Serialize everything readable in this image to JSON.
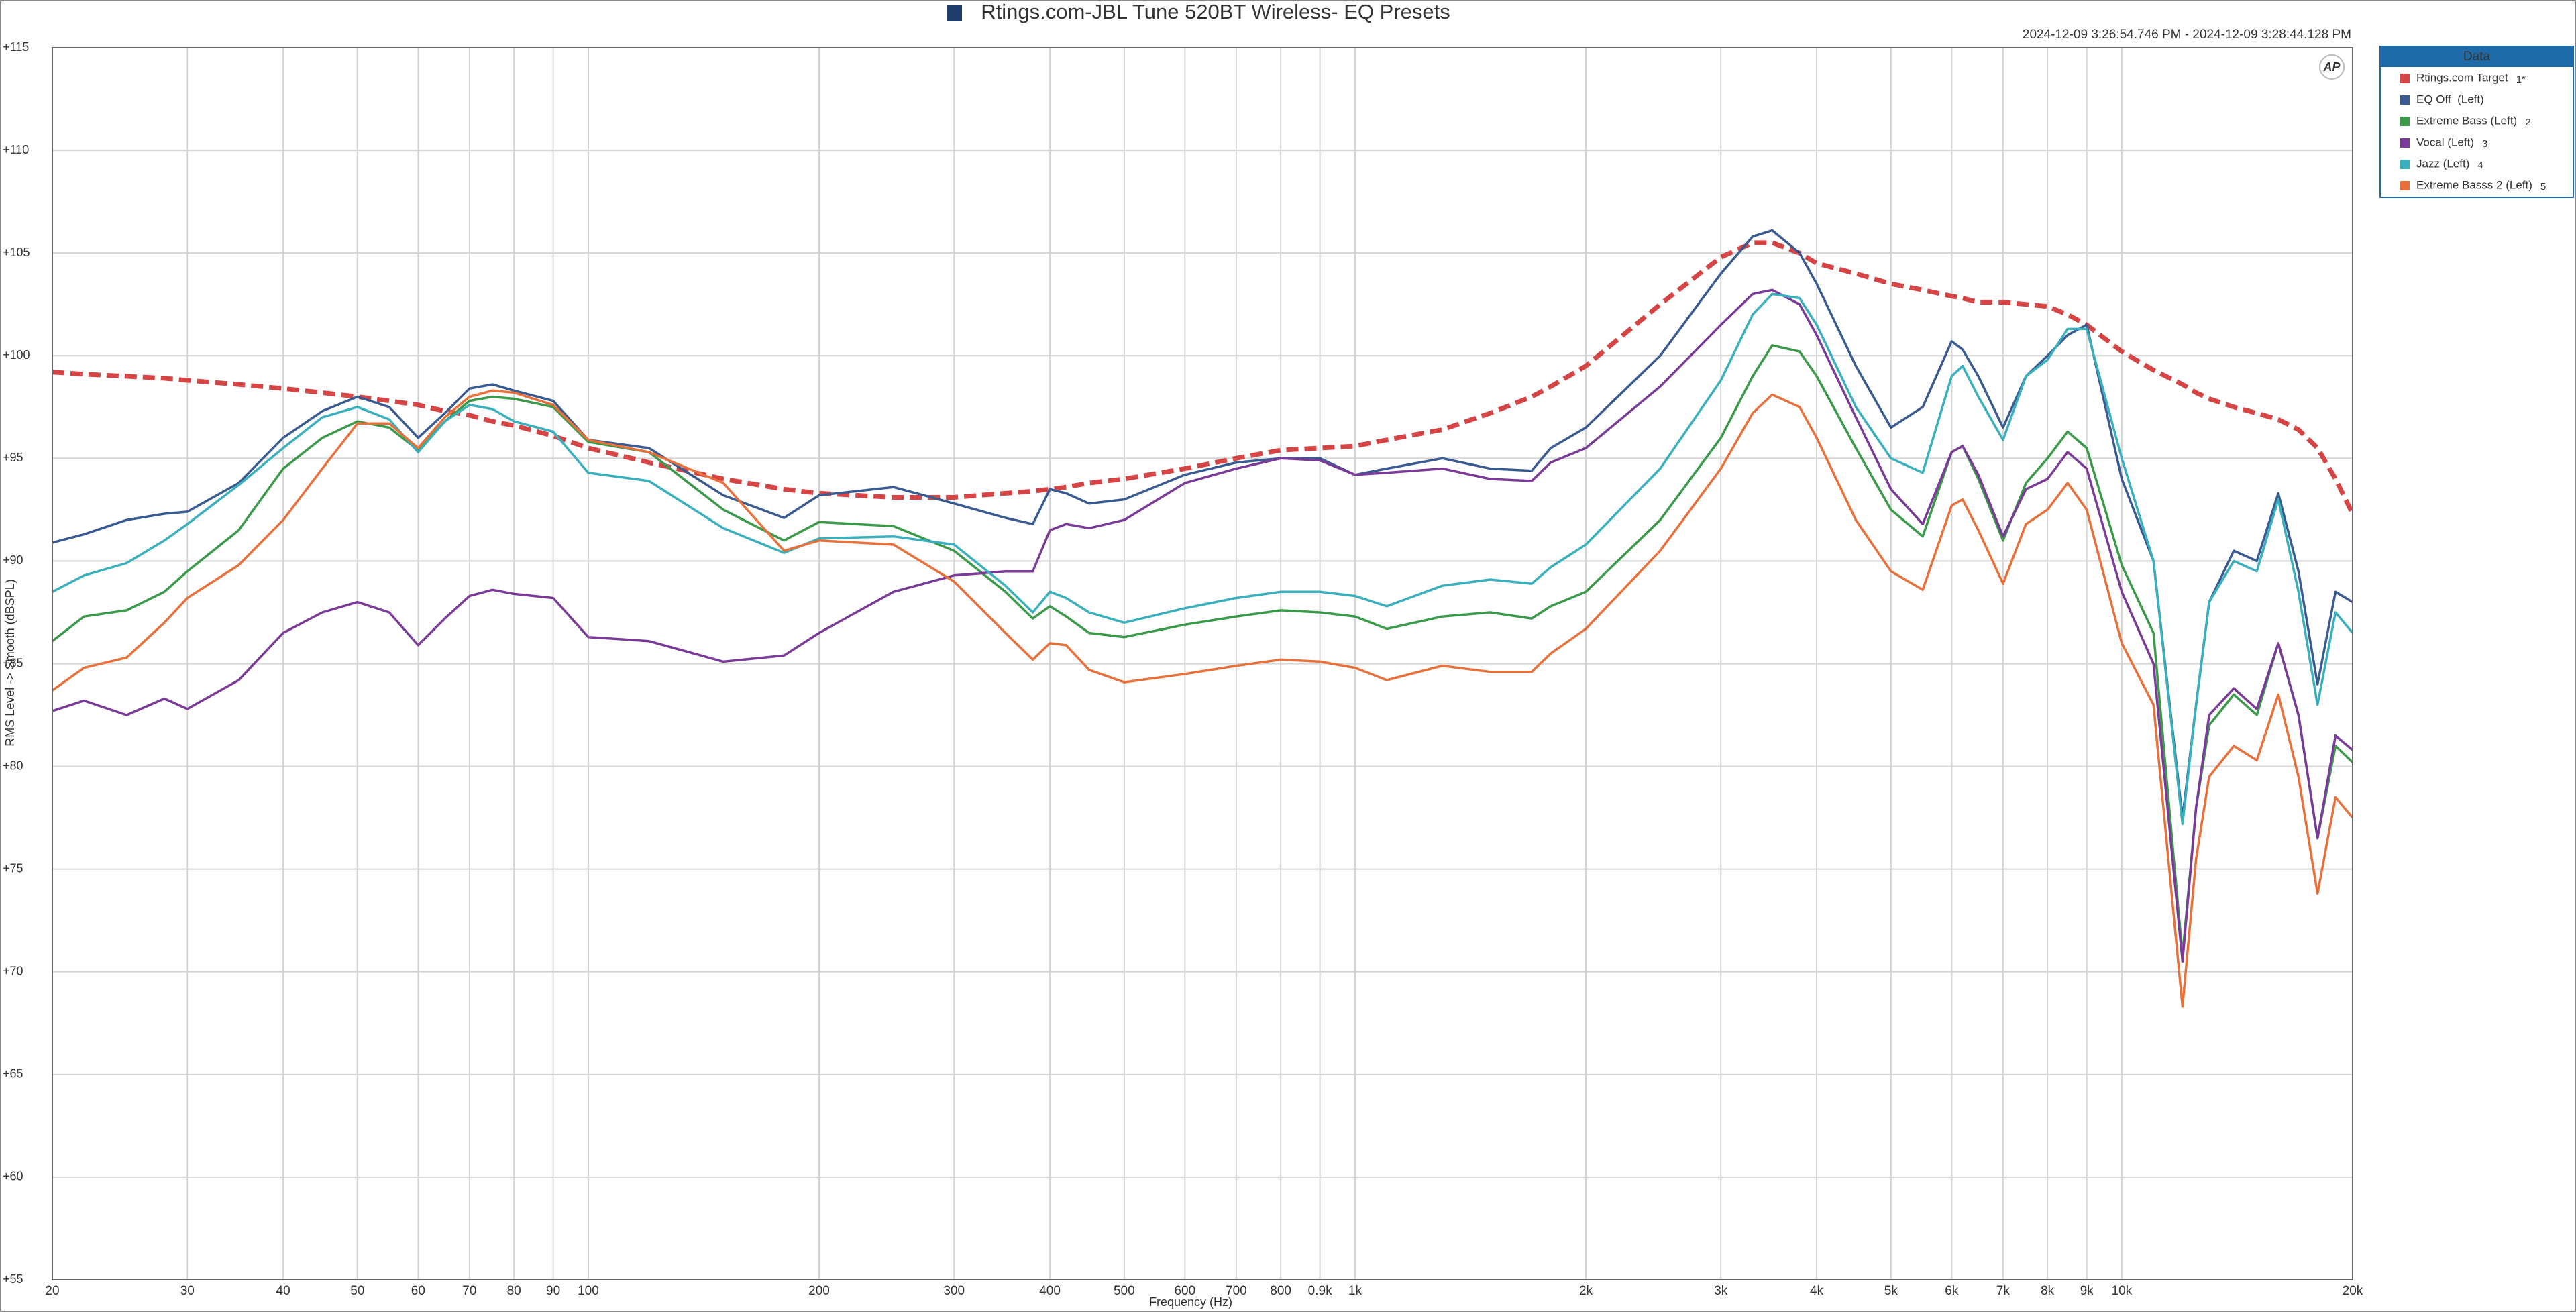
{
  "chart_data": {
    "type": "line",
    "title": "Rtings.com-JBL Tune 520BT Wireless- EQ Presets",
    "subtitle": "2024-12-09 3:26:54.746 PM - 2024-12-09 3:28:44.128 PM",
    "x_label": "Frequency (Hz)",
    "y_label": "RMS Level -> Smooth (dBSPL)",
    "logo": "AP",
    "legend_title": "Data",
    "legend_position": "right",
    "xscale": "log",
    "grid": true,
    "xlim": [
      20,
      20000
    ],
    "ylim": [
      55,
      115
    ],
    "xticks": [
      20,
      30,
      40,
      50,
      60,
      70,
      80,
      90,
      100,
      200,
      300,
      400,
      500,
      600,
      700,
      800,
      {
        "value": 900,
        "label": "0.9k"
      },
      {
        "value": 1000,
        "label": "1k"
      },
      {
        "value": 2000,
        "label": "2k"
      },
      {
        "value": 3000,
        "label": "3k"
      },
      {
        "value": 4000,
        "label": "4k"
      },
      {
        "value": 5000,
        "label": "5k"
      },
      {
        "value": 6000,
        "label": "6k"
      },
      {
        "value": 7000,
        "label": "7k"
      },
      {
        "value": 8000,
        "label": "8k"
      },
      {
        "value": 9000,
        "label": "9k"
      },
      {
        "value": 10000,
        "label": "10k"
      },
      {
        "value": 20000,
        "label": "20k"
      }
    ],
    "yticks": [
      {
        "value": 55,
        "label": "+55"
      },
      {
        "value": 60,
        "label": "+60"
      },
      {
        "value": 65,
        "label": "+65"
      },
      {
        "value": 70,
        "label": "+70"
      },
      {
        "value": 75,
        "label": "+75"
      },
      {
        "value": 80,
        "label": "+80"
      },
      {
        "value": 85,
        "label": "+85"
      },
      {
        "value": 90,
        "label": "+90"
      },
      {
        "value": 95,
        "label": "+95"
      },
      {
        "value": 100,
        "label": "+100"
      },
      {
        "value": 105,
        "label": "+105"
      },
      {
        "value": 110,
        "label": "+110"
      },
      {
        "value": 115,
        "label": "+115"
      }
    ],
    "x": [
      20,
      22,
      25,
      28,
      30,
      35,
      40,
      45,
      50,
      55,
      60,
      65,
      70,
      75,
      80,
      90,
      100,
      120,
      150,
      180,
      200,
      250,
      300,
      350,
      380,
      400,
      420,
      450,
      500,
      600,
      700,
      800,
      900,
      1000,
      1100,
      1300,
      1500,
      1700,
      1800,
      2000,
      2500,
      3000,
      3300,
      3500,
      3800,
      4000,
      4500,
      5000,
      5500,
      6000,
      6200,
      6500,
      7000,
      7500,
      8000,
      8500,
      9000,
      10000,
      11000,
      12000,
      12500,
      13000,
      14000,
      15000,
      16000,
      17000,
      18000,
      19000,
      20000
    ],
    "series": [
      {
        "name": "Rtings.com Target",
        "tag": "1*",
        "color": "#d64545",
        "dashed": true,
        "values": [
          99.2,
          99.1,
          99.0,
          98.9,
          98.8,
          98.6,
          98.4,
          98.2,
          98.0,
          97.8,
          97.6,
          97.3,
          97.1,
          96.8,
          96.6,
          96.1,
          95.5,
          94.8,
          94.0,
          93.5,
          93.3,
          93.1,
          93.1,
          93.3,
          93.4,
          93.5,
          93.6,
          93.8,
          94.0,
          94.5,
          95.0,
          95.4,
          95.5,
          95.6,
          95.9,
          96.4,
          97.2,
          98.0,
          98.5,
          99.5,
          102.5,
          104.8,
          105.5,
          105.5,
          105.0,
          104.5,
          104.0,
          103.5,
          103.2,
          102.9,
          102.8,
          102.6,
          102.6,
          102.5,
          102.4,
          102.0,
          101.5,
          100.2,
          99.3,
          98.6,
          98.2,
          97.9,
          97.5,
          97.2,
          96.9,
          96.4,
          95.5,
          94.0,
          92.3
        ]
      },
      {
        "name": "EQ Off  (Left)",
        "color": "#3a5a92",
        "values": [
          90.9,
          91.3,
          92.0,
          92.3,
          92.4,
          93.8,
          96.0,
          97.3,
          98.0,
          97.5,
          96.0,
          97.2,
          98.4,
          98.6,
          98.3,
          97.8,
          95.9,
          95.5,
          93.2,
          92.1,
          93.2,
          93.6,
          92.8,
          92.1,
          91.8,
          93.5,
          93.3,
          92.8,
          93.0,
          94.2,
          94.8,
          95.0,
          95.0,
          94.2,
          94.5,
          95.0,
          94.5,
          94.4,
          95.5,
          96.5,
          100.0,
          104.0,
          105.8,
          106.1,
          105.0,
          103.5,
          99.5,
          96.5,
          97.5,
          100.7,
          100.3,
          99.0,
          96.5,
          99.0,
          100.0,
          101.0,
          101.5,
          94.0,
          90.0,
          77.5,
          83.0,
          88.0,
          90.5,
          90.0,
          93.3,
          89.5,
          84.0,
          88.5,
          88.0
        ]
      },
      {
        "name": "Extreme Bass (Left)",
        "tag": "2",
        "color": "#3a9a4a",
        "values": [
          86.1,
          87.3,
          87.6,
          88.5,
          89.5,
          91.5,
          94.5,
          96.0,
          96.8,
          96.5,
          95.4,
          96.8,
          97.8,
          98.0,
          97.9,
          97.5,
          95.8,
          95.3,
          92.5,
          91.0,
          91.9,
          91.7,
          90.5,
          88.5,
          87.2,
          87.8,
          87.3,
          86.5,
          86.3,
          86.9,
          87.3,
          87.6,
          87.5,
          87.3,
          86.7,
          87.3,
          87.5,
          87.2,
          87.8,
          88.5,
          92.0,
          96.0,
          99.0,
          100.5,
          100.2,
          99.0,
          95.5,
          92.5,
          91.2,
          95.3,
          95.6,
          94.0,
          91.0,
          93.8,
          95.0,
          96.3,
          95.5,
          89.8,
          86.5,
          70.8,
          78.0,
          82.0,
          83.5,
          82.5,
          86.0,
          82.5,
          76.5,
          81.0,
          80.2
        ]
      },
      {
        "name": "Vocal (Left)",
        "tag": "3",
        "color": "#7a3a98",
        "values": [
          82.7,
          83.2,
          82.5,
          83.3,
          82.8,
          84.2,
          86.5,
          87.5,
          88.0,
          87.5,
          85.9,
          87.2,
          88.3,
          88.6,
          88.4,
          88.2,
          86.3,
          86.1,
          85.1,
          85.4,
          86.5,
          88.5,
          89.3,
          89.5,
          89.5,
          91.5,
          91.8,
          91.6,
          92.0,
          93.8,
          94.5,
          95.0,
          94.9,
          94.2,
          94.3,
          94.5,
          94.0,
          93.9,
          94.8,
          95.5,
          98.5,
          101.5,
          103.0,
          103.2,
          102.5,
          101.0,
          97.0,
          93.5,
          91.8,
          95.3,
          95.6,
          94.2,
          91.2,
          93.5,
          94.0,
          95.3,
          94.5,
          88.5,
          85.0,
          70.5,
          78.0,
          82.5,
          83.8,
          82.8,
          86.0,
          82.5,
          76.5,
          81.5,
          80.8
        ]
      },
      {
        "name": "Jazz (Left)",
        "tag": "4",
        "color": "#3ab0bd",
        "values": [
          88.5,
          89.3,
          89.9,
          91.0,
          91.8,
          93.7,
          95.5,
          97.0,
          97.5,
          96.9,
          95.3,
          96.8,
          97.6,
          97.4,
          96.8,
          96.3,
          94.3,
          93.9,
          91.6,
          90.4,
          91.1,
          91.2,
          90.8,
          88.8,
          87.5,
          88.5,
          88.2,
          87.5,
          87.0,
          87.7,
          88.2,
          88.5,
          88.5,
          88.3,
          87.8,
          88.8,
          89.1,
          88.9,
          89.7,
          90.8,
          94.5,
          98.8,
          102.0,
          103.0,
          102.8,
          101.5,
          97.5,
          95.0,
          94.3,
          99.0,
          99.5,
          98.0,
          95.9,
          99.0,
          99.8,
          101.3,
          101.3,
          95.0,
          90.0,
          77.2,
          83.0,
          88.0,
          90.0,
          89.5,
          93.0,
          88.5,
          83.0,
          87.5,
          86.5
        ]
      },
      {
        "name": "Extreme Basss 2 (Left)",
        "tag": "5",
        "color": "#e8703a",
        "values": [
          83.7,
          84.8,
          85.3,
          87.0,
          88.2,
          89.8,
          92.0,
          94.5,
          96.7,
          96.7,
          95.5,
          97.0,
          98.0,
          98.3,
          98.2,
          97.6,
          95.9,
          95.3,
          93.8,
          90.5,
          91.0,
          90.8,
          89.0,
          86.5,
          85.2,
          86.0,
          85.9,
          84.7,
          84.1,
          84.5,
          84.9,
          85.2,
          85.1,
          84.8,
          84.2,
          84.9,
          84.6,
          84.6,
          85.5,
          86.7,
          90.5,
          94.5,
          97.2,
          98.1,
          97.5,
          96.0,
          92.0,
          89.5,
          88.6,
          92.7,
          93.0,
          91.5,
          88.9,
          91.8,
          92.5,
          93.8,
          92.5,
          86.0,
          83.0,
          68.3,
          75.5,
          79.5,
          81.0,
          80.3,
          83.5,
          79.5,
          73.8,
          78.5,
          77.5
        ]
      }
    ]
  }
}
